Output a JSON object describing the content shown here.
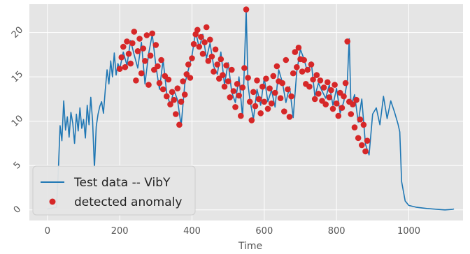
{
  "chart_data": {
    "type": "scatter",
    "xlabel": "Time",
    "ylabel": "",
    "xlim": [
      -50,
      1150
    ],
    "ylim": [
      -1.2,
      23.2
    ],
    "xticks": [
      0,
      200,
      400,
      600,
      800,
      1000
    ],
    "yticks": [
      0,
      5,
      10,
      15,
      20
    ],
    "grid": true,
    "legend_position": "lower-left",
    "colors": {
      "background": "#e5e5e5",
      "grid": "#ffffff",
      "line": "#1f77b4",
      "anomaly": "#d62728"
    },
    "series": [
      {
        "name": "Test data -- VibY",
        "type": "line",
        "x": [
          0,
          25,
          30,
          35,
          40,
          45,
          50,
          55,
          60,
          65,
          70,
          75,
          80,
          85,
          90,
          95,
          100,
          105,
          110,
          115,
          120,
          125,
          130,
          135,
          140,
          145,
          150,
          155,
          160,
          165,
          170,
          175,
          180,
          185,
          190,
          195,
          200,
          210,
          220,
          230,
          240,
          250,
          260,
          270,
          280,
          290,
          300,
          310,
          320,
          330,
          340,
          350,
          360,
          370,
          380,
          390,
          400,
          410,
          420,
          430,
          440,
          450,
          460,
          470,
          480,
          490,
          500,
          510,
          520,
          530,
          540,
          545,
          550,
          555,
          560,
          570,
          580,
          590,
          600,
          610,
          620,
          630,
          640,
          650,
          660,
          670,
          680,
          690,
          700,
          710,
          720,
          730,
          740,
          750,
          760,
          770,
          780,
          790,
          800,
          810,
          820,
          830,
          835,
          840,
          850,
          860,
          870,
          880,
          890,
          900,
          910,
          920,
          930,
          940,
          950,
          960,
          970,
          975,
          980,
          990,
          1000,
          1020,
          1050,
          1080,
          1100,
          1120,
          1125
        ],
        "y": [
          0.1,
          0.3,
          4.2,
          9.5,
          7.8,
          12.3,
          9.0,
          10.5,
          8.2,
          11.0,
          9.8,
          7.5,
          10.8,
          8.9,
          11.5,
          9.2,
          10.2,
          8.1,
          11.8,
          9.6,
          12.7,
          10.0,
          4.7,
          9.4,
          10.8,
          11.7,
          12.2,
          10.9,
          13.5,
          15.8,
          14.2,
          16.8,
          15.0,
          17.7,
          15.2,
          16.5,
          15.9,
          17.8,
          16.3,
          19.1,
          17.5,
          16.0,
          18.9,
          14.2,
          17.6,
          19.8,
          16.3,
          13.6,
          16.9,
          13.2,
          11.8,
          13.5,
          12.4,
          9.5,
          14.2,
          15.8,
          17.4,
          20.1,
          18.3,
          19.8,
          17.1,
          18.8,
          16.2,
          15.3,
          17.8,
          14.1,
          16.6,
          13.3,
          12.1,
          15.0,
          10.4,
          16.2,
          22.6,
          14.1,
          12.5,
          10.2,
          13.6,
          11.8,
          14.9,
          12.2,
          13.5,
          11.6,
          15.8,
          14.4,
          12.1,
          13.9,
          10.4,
          15.6,
          18.1,
          17.0,
          15.5,
          16.7,
          12.8,
          14.3,
          13.4,
          12.6,
          14.1,
          11.8,
          13.7,
          10.9,
          12.2,
          14.6,
          19.3,
          11.7,
          13.0,
          9.9,
          12.5,
          7.4,
          6.2,
          10.8,
          11.5,
          9.6,
          12.8,
          10.3,
          12.3,
          11.1,
          9.7,
          8.8,
          3.2,
          1.0,
          0.5,
          0.3,
          0.15,
          0.05,
          0.0,
          0.05,
          0.1
        ]
      },
      {
        "name": "detected anomaly",
        "type": "scatter",
        "x": [
          200,
          205,
          210,
          215,
          220,
          225,
          230,
          235,
          240,
          245,
          250,
          255,
          260,
          265,
          270,
          275,
          280,
          285,
          290,
          295,
          300,
          305,
          310,
          315,
          320,
          325,
          330,
          335,
          340,
          345,
          350,
          355,
          360,
          365,
          370,
          375,
          380,
          385,
          390,
          395,
          400,
          405,
          410,
          415,
          420,
          425,
          430,
          435,
          440,
          445,
          450,
          455,
          460,
          465,
          470,
          475,
          480,
          485,
          490,
          495,
          500,
          505,
          510,
          515,
          520,
          525,
          530,
          535,
          540,
          545,
          550,
          555,
          560,
          565,
          570,
          575,
          580,
          585,
          590,
          595,
          600,
          605,
          610,
          615,
          620,
          625,
          630,
          635,
          640,
          645,
          650,
          655,
          660,
          665,
          670,
          675,
          680,
          685,
          690,
          695,
          700,
          705,
          710,
          715,
          720,
          725,
          730,
          735,
          740,
          745,
          750,
          755,
          760,
          765,
          770,
          775,
          780,
          785,
          790,
          795,
          800,
          805,
          810,
          815,
          820,
          825,
          830,
          835,
          840,
          845,
          850,
          855,
          860,
          865,
          870,
          875,
          880,
          885
        ],
        "y": [
          15.9,
          17.2,
          18.4,
          16.1,
          19.0,
          17.6,
          16.5,
          18.8,
          20.1,
          14.6,
          17.9,
          19.3,
          15.4,
          18.2,
          16.8,
          19.7,
          14.1,
          17.4,
          19.9,
          15.8,
          18.6,
          16.2,
          14.3,
          16.9,
          13.6,
          15.1,
          12.8,
          14.7,
          11.9,
          13.3,
          12.4,
          10.8,
          13.7,
          9.6,
          12.2,
          14.5,
          13.0,
          15.3,
          16.4,
          14.9,
          17.1,
          18.7,
          19.8,
          20.3,
          18.4,
          19.5,
          17.6,
          18.9,
          20.6,
          16.8,
          19.2,
          17.3,
          15.6,
          18.1,
          16.4,
          14.8,
          17.0,
          15.2,
          13.9,
          16.3,
          14.5,
          12.7,
          15.8,
          13.4,
          11.6,
          14.2,
          12.9,
          10.6,
          13.8,
          16.0,
          22.6,
          14.9,
          12.2,
          10.1,
          13.3,
          11.7,
          14.6,
          12.5,
          10.9,
          13.9,
          12.2,
          14.8,
          11.4,
          13.7,
          12.0,
          15.1,
          13.2,
          16.2,
          14.5,
          12.6,
          14.3,
          11.1,
          16.9,
          13.6,
          10.5,
          12.8,
          15.4,
          17.8,
          16.1,
          18.3,
          17.0,
          15.6,
          16.9,
          14.2,
          15.8,
          13.9,
          16.4,
          14.7,
          12.5,
          15.2,
          13.1,
          14.6,
          12.3,
          13.8,
          11.9,
          14.4,
          12.7,
          13.5,
          11.4,
          14.1,
          12.0,
          10.6,
          13.2,
          11.5,
          12.8,
          14.3,
          19.0,
          12.2,
          10.8,
          11.9,
          9.3,
          12.4,
          8.1,
          10.2,
          7.3,
          9.6,
          6.6,
          7.8
        ]
      }
    ]
  }
}
